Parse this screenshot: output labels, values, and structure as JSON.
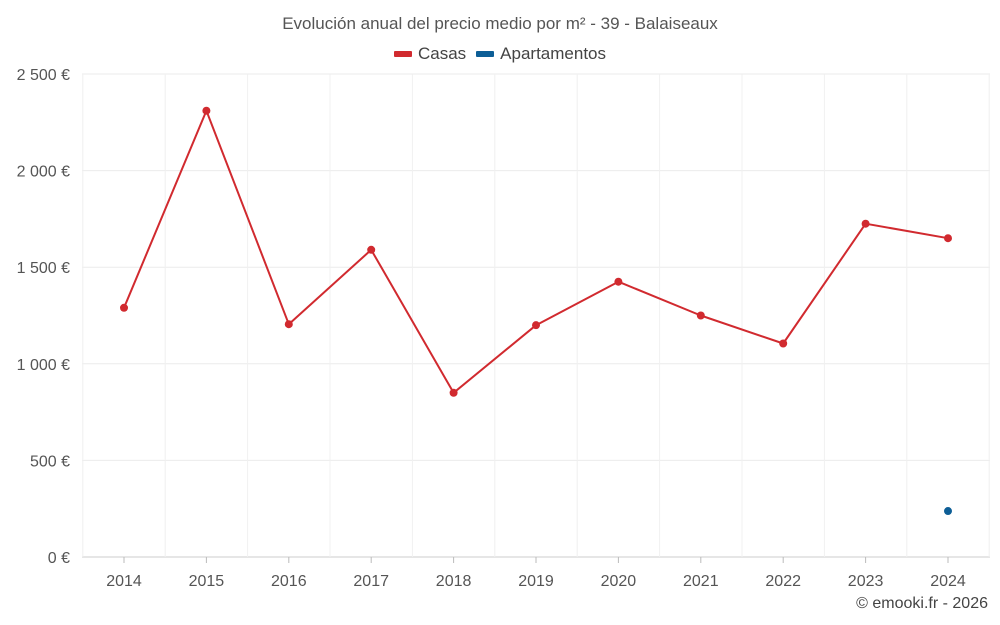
{
  "chart_data": {
    "type": "line",
    "title": "Evolución anual del precio medio por m² - 39 - Balaiseaux",
    "x": [
      "2014",
      "2015",
      "2016",
      "2017",
      "2018",
      "2019",
      "2020",
      "2021",
      "2022",
      "2023",
      "2024"
    ],
    "series": [
      {
        "name": "Casas",
        "color": "#d12a2f",
        "values": [
          1290,
          2310,
          1205,
          1590,
          850,
          1200,
          1425,
          1250,
          1105,
          1725,
          1650
        ]
      },
      {
        "name": "Apartamentos",
        "color": "#0d5e96",
        "values": [
          null,
          null,
          null,
          null,
          null,
          null,
          null,
          null,
          null,
          null,
          238
        ]
      }
    ],
    "y_ticks": [
      "0 €",
      "500 €",
      "1 000 €",
      "1 500 €",
      "2 000 €",
      "2 500 €"
    ],
    "ylim": [
      0,
      2500
    ],
    "grid": true,
    "legend_position": "top-center"
  },
  "credit": "© emooki.fr - 2026"
}
